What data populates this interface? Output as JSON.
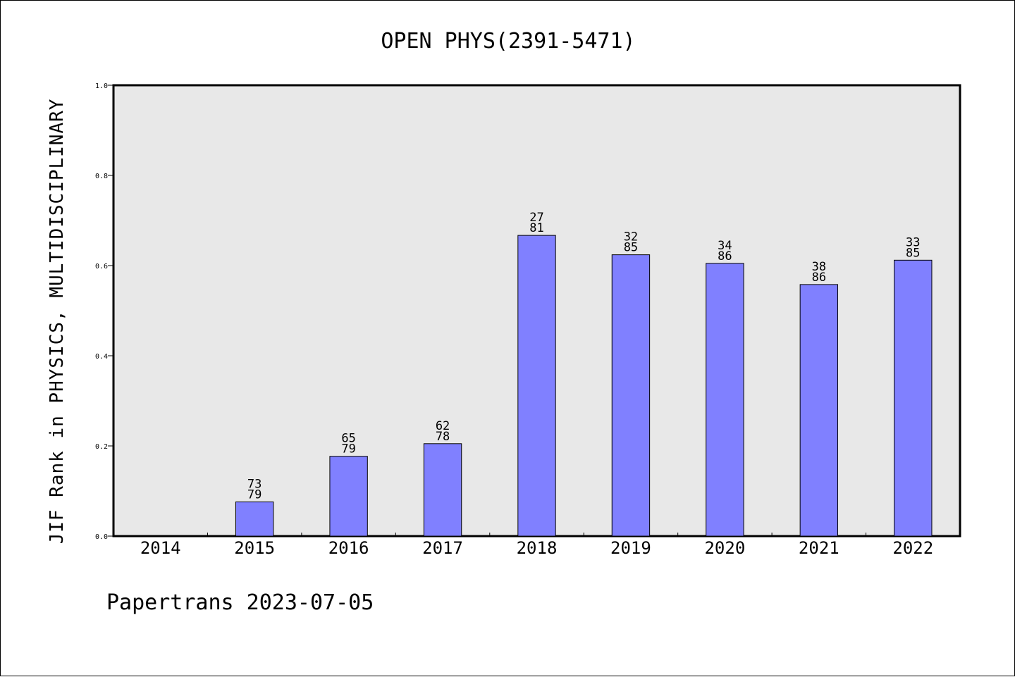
{
  "chart_data": {
    "type": "bar",
    "title": "OPEN PHYS(2391-5471)",
    "xlabel": "",
    "ylabel": "JIF Rank in PHYSICS, MULTIDISCIPLINARY",
    "categories": [
      "2014",
      "2015",
      "2016",
      "2017",
      "2018",
      "2019",
      "2020",
      "2021",
      "2022"
    ],
    "values": [
      null,
      0.076,
      0.177,
      0.205,
      0.667,
      0.624,
      0.605,
      0.558,
      0.612
    ],
    "rank_labels": [
      null,
      [
        "73",
        "79"
      ],
      [
        "65",
        "79"
      ],
      [
        "62",
        "78"
      ],
      [
        "27",
        "81"
      ],
      [
        "32",
        "85"
      ],
      [
        "34",
        "86"
      ],
      [
        "38",
        "86"
      ],
      [
        "33",
        "85"
      ]
    ],
    "ylim": [
      0,
      1.0
    ],
    "yticks": [
      "0.0",
      "0.2",
      "0.4",
      "0.6",
      "0.8",
      "1.0"
    ],
    "grid": false,
    "colors": {
      "bar": "#8080ff",
      "plot_background": "#e8e8e8",
      "page_background": "#ffffff"
    }
  },
  "footer": "Papertrans 2023-07-05"
}
